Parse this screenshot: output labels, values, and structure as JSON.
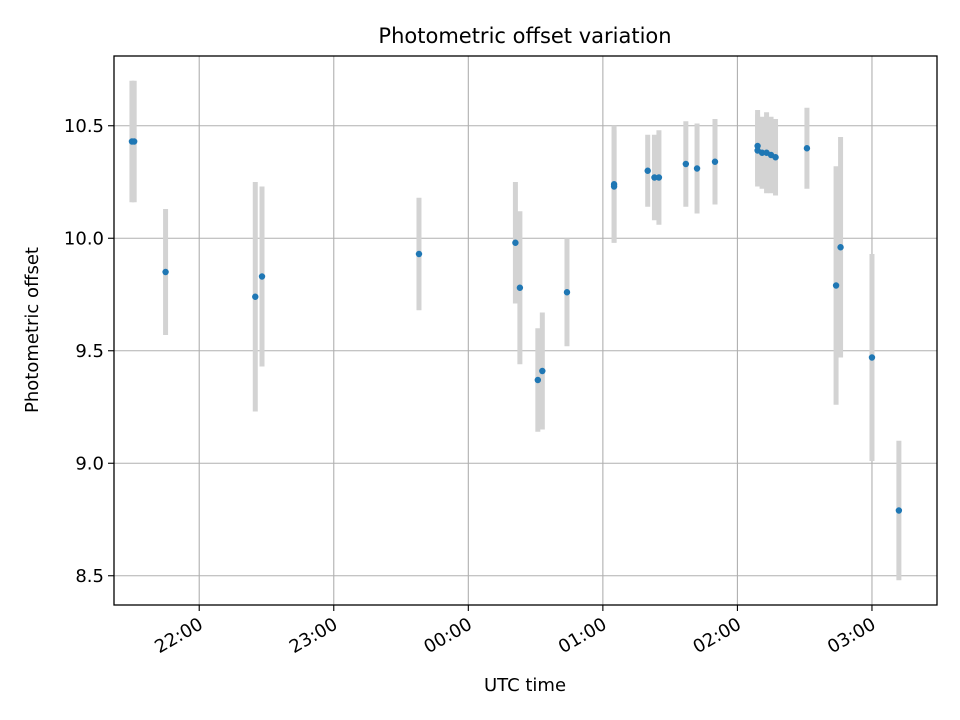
{
  "chart_data": {
    "type": "scatter",
    "title": "Photometric offset variation",
    "xlabel": "UTC time",
    "ylabel": "Photometric offset",
    "grid": true,
    "x_start": "21:22",
    "x_end": "03:29",
    "ylim": [
      8.37,
      10.81
    ],
    "x_ticks": [
      "22:00",
      "23:00",
      "00:00",
      "01:00",
      "02:00",
      "03:00"
    ],
    "y_ticks": [
      "8.5",
      "9.0",
      "9.5",
      "10.0",
      "10.5"
    ],
    "colors": {
      "point": "#1f77b4",
      "errorbar": "#d3d3d3",
      "grid": "#b0b0b0"
    },
    "points": [
      {
        "x": "21:30",
        "y": 10.43,
        "err": 0.27
      },
      {
        "x": "21:31",
        "y": 10.43,
        "err": 0.27
      },
      {
        "x": "21:45",
        "y": 9.85,
        "err": 0.28
      },
      {
        "x": "22:25",
        "y": 9.74,
        "err": 0.51
      },
      {
        "x": "22:28",
        "y": 9.83,
        "err": 0.4
      },
      {
        "x": "23:38",
        "y": 9.93,
        "err": 0.25
      },
      {
        "x": "00:21",
        "y": 9.98,
        "err": 0.27
      },
      {
        "x": "00:23",
        "y": 9.78,
        "err": 0.34
      },
      {
        "x": "00:31",
        "y": 9.37,
        "err": 0.23
      },
      {
        "x": "00:33",
        "y": 9.41,
        "err": 0.26
      },
      {
        "x": "00:44",
        "y": 9.76,
        "err": 0.24
      },
      {
        "x": "01:05",
        "y": 10.24,
        "err": 0.26
      },
      {
        "x": "01:05",
        "y": 10.23,
        "err": 0.25
      },
      {
        "x": "01:20",
        "y": 10.3,
        "err": 0.16
      },
      {
        "x": "01:23",
        "y": 10.27,
        "err": 0.19
      },
      {
        "x": "01:25",
        "y": 10.27,
        "err": 0.21
      },
      {
        "x": "01:37",
        "y": 10.33,
        "err": 0.19
      },
      {
        "x": "01:42",
        "y": 10.31,
        "err": 0.2
      },
      {
        "x": "01:50",
        "y": 10.34,
        "err": 0.19
      },
      {
        "x": "02:09",
        "y": 10.41,
        "err": 0.16
      },
      {
        "x": "02:09",
        "y": 10.39,
        "err": 0.16
      },
      {
        "x": "02:11",
        "y": 10.38,
        "err": 0.16
      },
      {
        "x": "02:13",
        "y": 10.38,
        "err": 0.18
      },
      {
        "x": "02:15",
        "y": 10.37,
        "err": 0.17
      },
      {
        "x": "02:17",
        "y": 10.36,
        "err": 0.17
      },
      {
        "x": "02:31",
        "y": 10.4,
        "err": 0.18
      },
      {
        "x": "02:44",
        "y": 9.79,
        "err": 0.53
      },
      {
        "x": "02:46",
        "y": 9.96,
        "err": 0.49
      },
      {
        "x": "03:00",
        "y": 9.47,
        "err": 0.46
      },
      {
        "x": "03:12",
        "y": 8.79,
        "err": 0.31
      }
    ]
  }
}
